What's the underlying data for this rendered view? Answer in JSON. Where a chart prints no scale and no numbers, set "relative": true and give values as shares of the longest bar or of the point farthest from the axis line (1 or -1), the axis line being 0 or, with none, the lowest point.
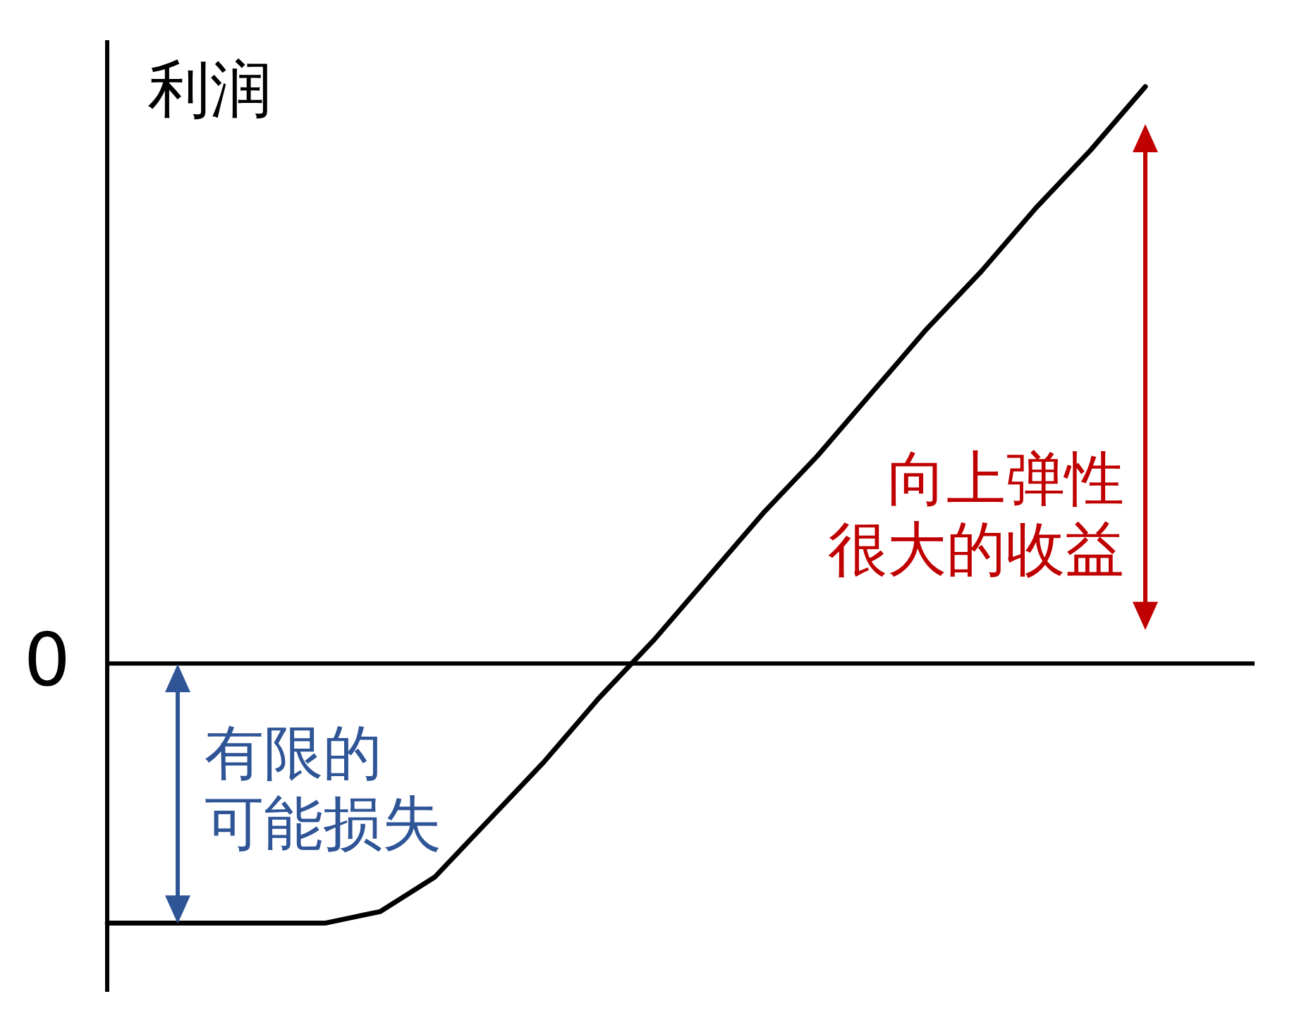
{
  "chart_data": {
    "type": "line",
    "ylabel": "利润",
    "categories": [
      null,
      null,
      null,
      null,
      null,
      null,
      null,
      null,
      null,
      null,
      null,
      null,
      null,
      null,
      null,
      null,
      null,
      null,
      null,
      null,
      null,
      null
    ],
    "series": [
      {
        "color": "#000000",
        "values": [
          -0.45,
          -0.45,
          -0.45,
          -0.45,
          -0.45,
          -0.43,
          -0.37,
          -0.27,
          -0.17,
          -0.06,
          0.04,
          0.15,
          0.26,
          0.36,
          0.47,
          0.58,
          0.68,
          0.79,
          0.89,
          1,
          null,
          null
        ]
      }
    ],
    "relative": true,
    "marker": "none",
    "ref_lines": [
      {
        "axis": "y",
        "value": 0,
        "label": "0",
        "color": "#000000"
      }
    ],
    "annotations": [
      "有限的可能损失",
      "向上弹性很大的收益"
    ]
  }
}
